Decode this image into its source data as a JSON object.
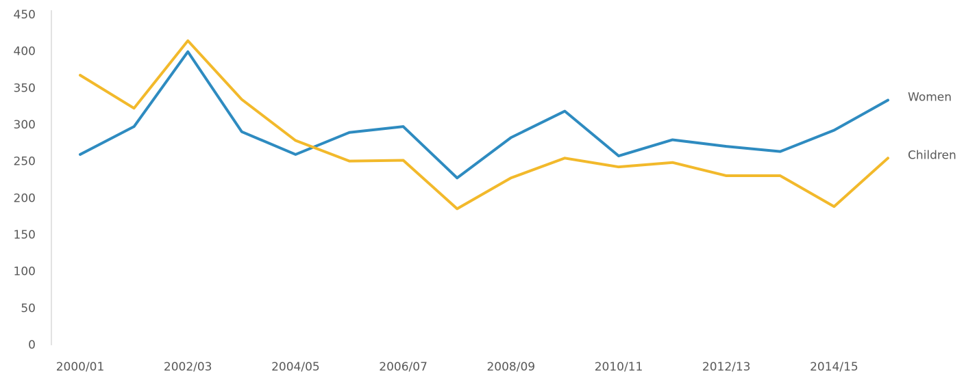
{
  "chart_data": {
    "type": "line",
    "categories": [
      "2000/01",
      null,
      "2002/03",
      null,
      "2004/05",
      null,
      "2006/07",
      null,
      "2008/09",
      null,
      "2010/11",
      null,
      "2012/13",
      null,
      "2014/15",
      null
    ],
    "series": [
      {
        "name": "Women",
        "color": "#2e8bc0",
        "values": [
          260,
          298,
          400,
          291,
          260,
          290,
          298,
          228,
          283,
          319,
          258,
          280,
          271,
          264,
          293,
          334
        ]
      },
      {
        "name": "Children",
        "color": "#f2b92b",
        "values": [
          368,
          323,
          415,
          335,
          279,
          251,
          252,
          186,
          228,
          255,
          243,
          249,
          231,
          231,
          189,
          255
        ]
      }
    ],
    "ylim": [
      0,
      450
    ],
    "yticks": [
      0,
      50,
      100,
      150,
      200,
      250,
      300,
      350,
      400,
      450
    ]
  }
}
